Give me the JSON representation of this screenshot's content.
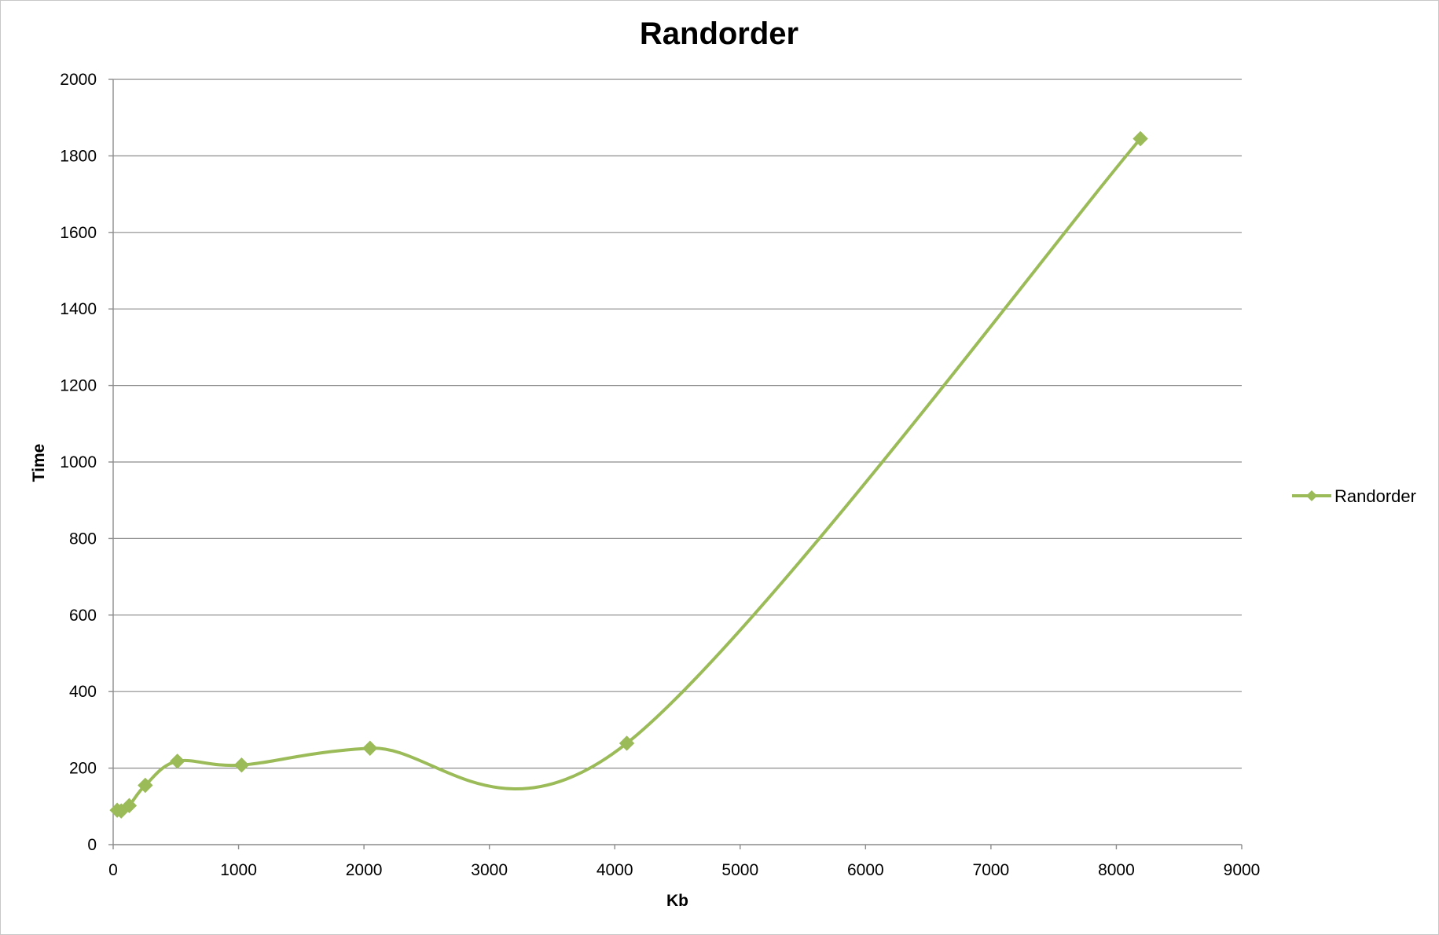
{
  "colors": {
    "series": "#9BBB59"
  },
  "chart_data": {
    "type": "line",
    "title": "Randorder",
    "xlabel": "Kb",
    "ylabel": "Time",
    "xlim": [
      0,
      9000
    ],
    "ylim": [
      0,
      2000
    ],
    "x_ticks": [
      "0",
      "1000",
      "2000",
      "3000",
      "4000",
      "5000",
      "6000",
      "7000",
      "8000",
      "9000"
    ],
    "y_ticks": [
      "0",
      "200",
      "400",
      "600",
      "800",
      "1000",
      "1200",
      "1400",
      "1600",
      "1800",
      "2000"
    ],
    "grid": true,
    "legend_position": "right",
    "smooth": true,
    "marker": "diamond",
    "series": [
      {
        "name": "Randorder",
        "x": [
          32,
          64,
          128,
          256,
          512,
          1024,
          2048,
          4096,
          8192
        ],
        "y": [
          90,
          88,
          102,
          155,
          218,
          208,
          252,
          265,
          1845
        ]
      }
    ]
  }
}
